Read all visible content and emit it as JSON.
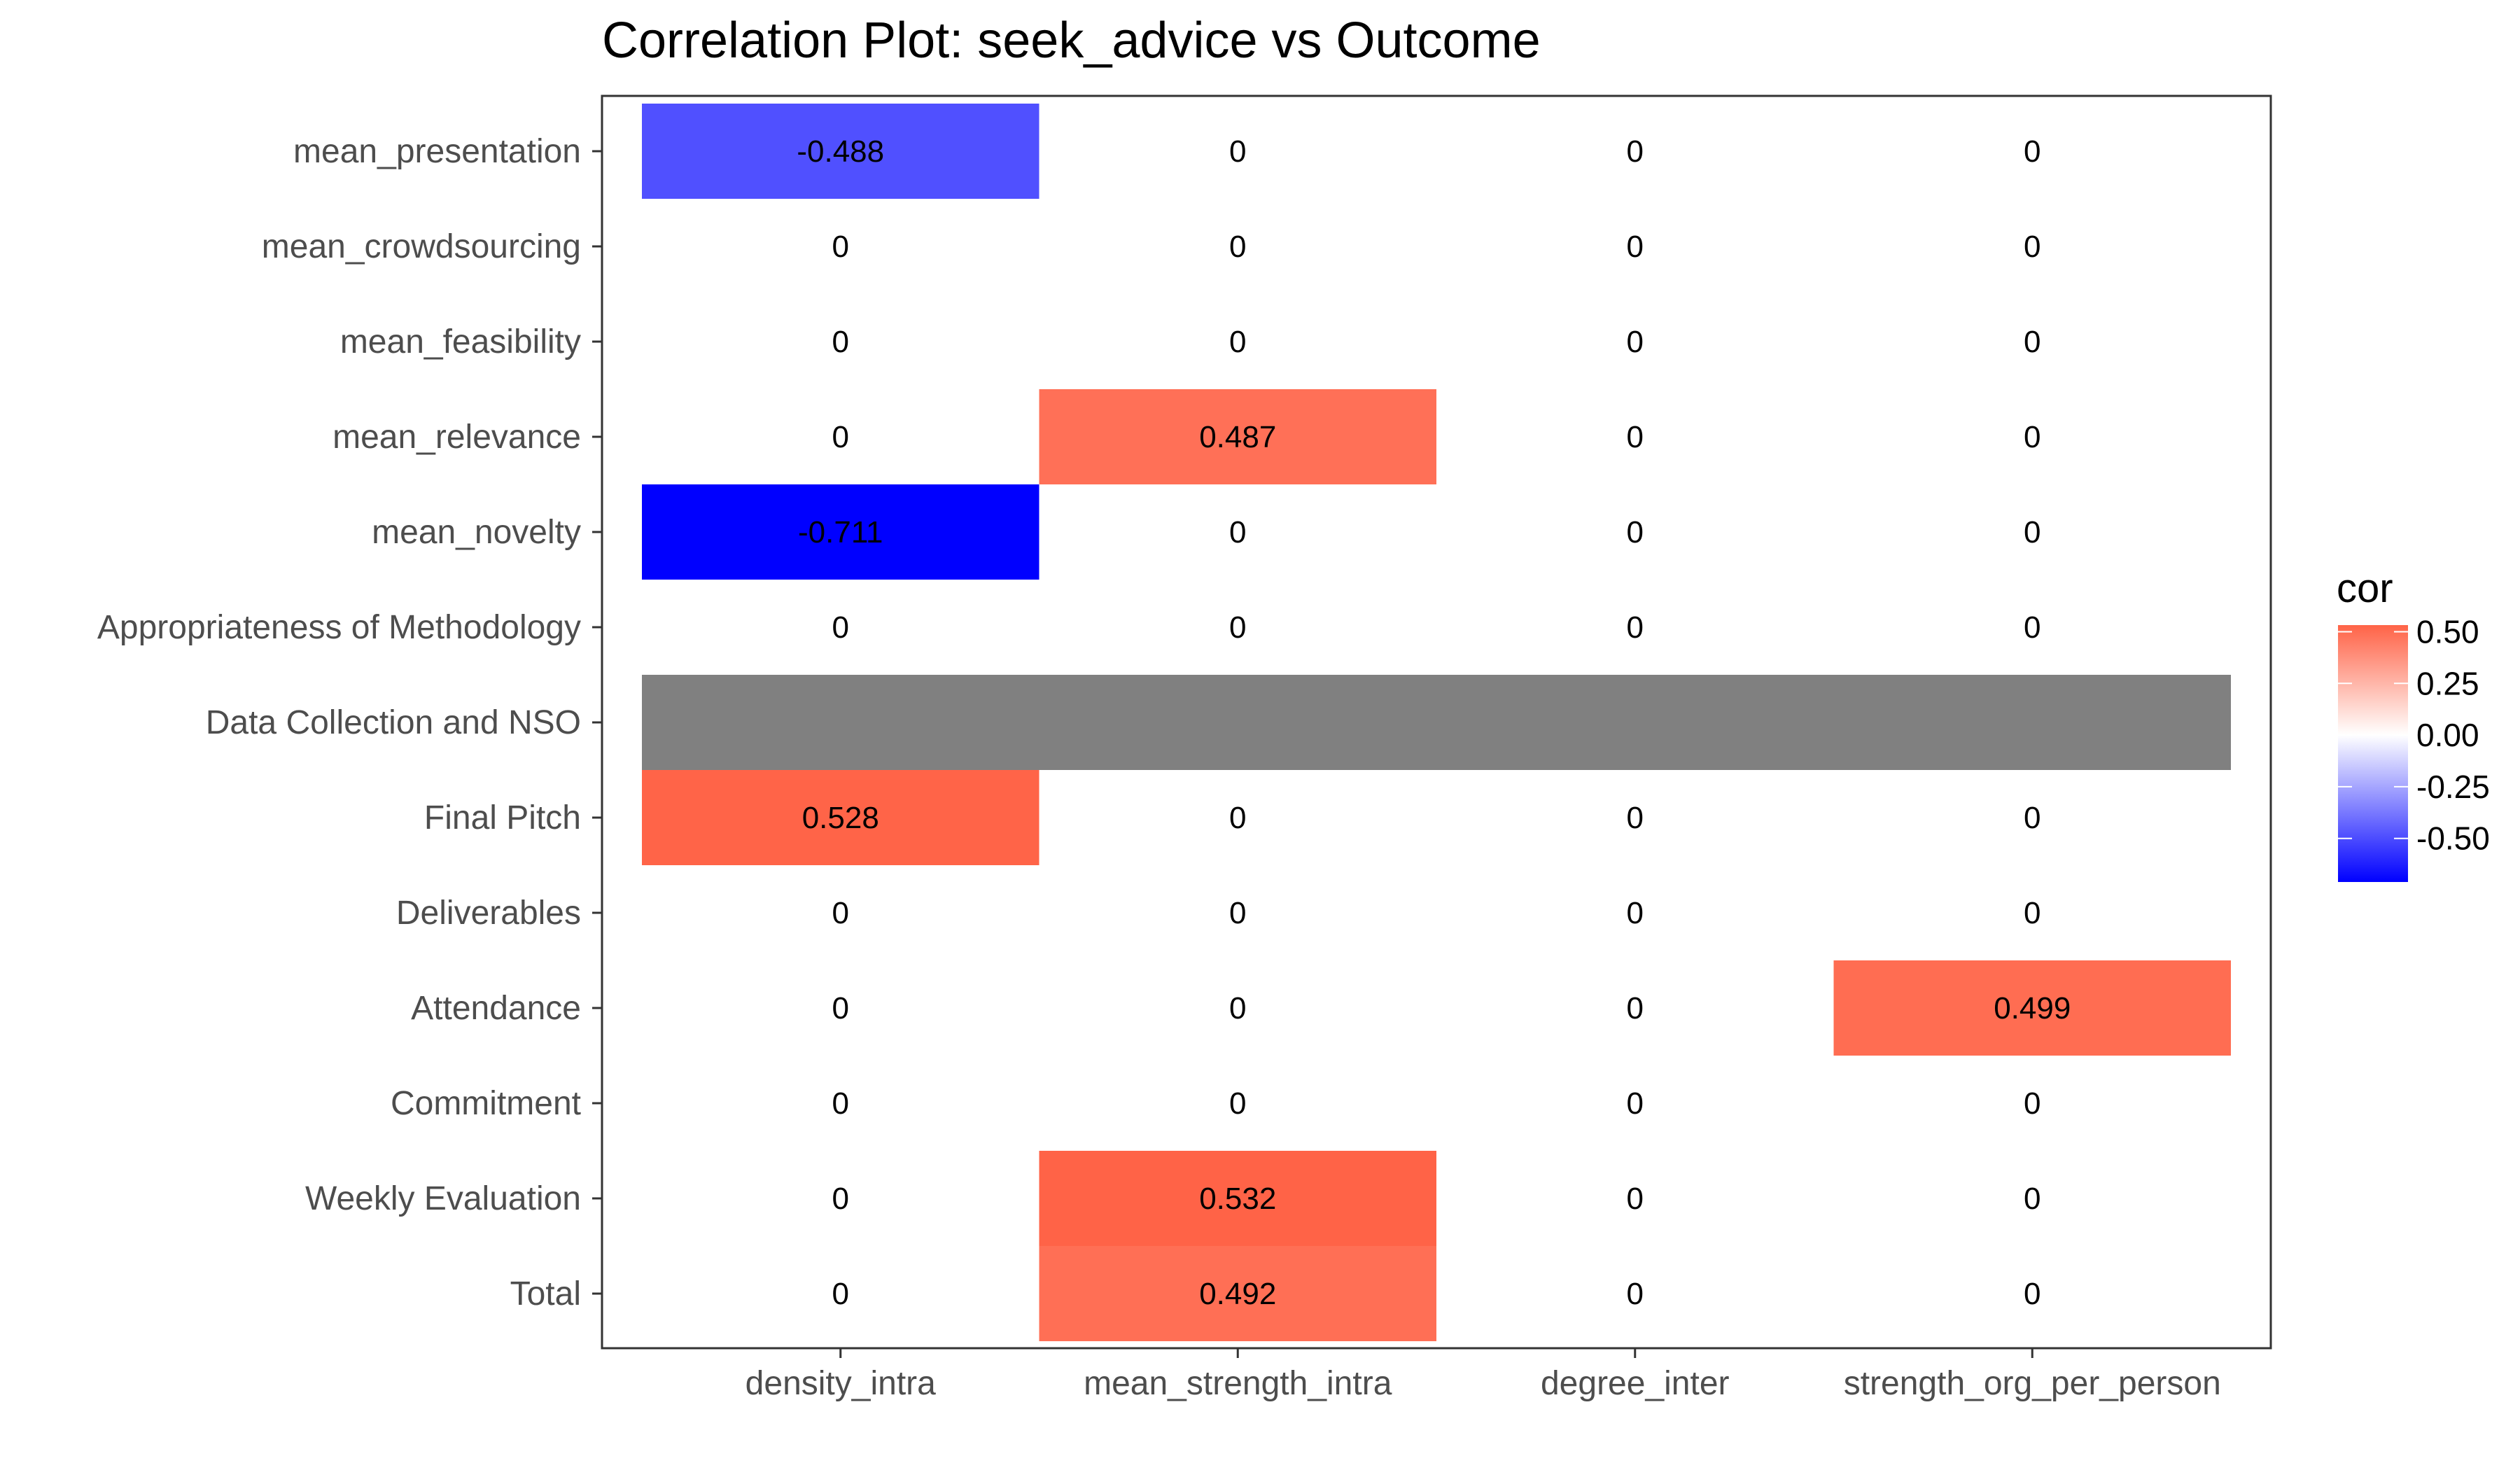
{
  "chart_data": {
    "type": "heatmap",
    "title": "Correlation Plot: seek_advice vs Outcome",
    "xlabel": "",
    "ylabel": "",
    "x_categories": [
      "density_intra",
      "mean_strength_intra",
      "degree_inter",
      "strength_org_per_person"
    ],
    "y_categories": [
      "mean_presentation",
      "mean_crowdsourcing",
      "mean_feasibility",
      "mean_relevance",
      "mean_novelty",
      "Appropriateness of Methodology",
      "Data Collection and NSO",
      "Final Pitch",
      "Deliverables",
      "Attendance",
      "Commitment",
      "Weekly Evaluation",
      "Total"
    ],
    "values": [
      [
        -0.488,
        0,
        0,
        0
      ],
      [
        0,
        0,
        0,
        0
      ],
      [
        0,
        0,
        0,
        0
      ],
      [
        0,
        0.487,
        0,
        0
      ],
      [
        -0.711,
        0,
        0,
        0
      ],
      [
        0,
        0,
        0,
        0
      ],
      [
        null,
        null,
        null,
        null
      ],
      [
        0.528,
        0,
        0,
        0
      ],
      [
        0,
        0,
        0,
        0
      ],
      [
        0,
        0,
        0,
        0.499
      ],
      [
        0,
        0,
        0,
        0
      ],
      [
        0,
        0.532,
        0,
        0
      ],
      [
        0,
        0.492,
        0,
        0
      ]
    ],
    "legend": {
      "title": "cor",
      "ticks": [
        0.5,
        0.25,
        0,
        -0.25,
        -0.5
      ],
      "tick_labels": [
        "0.50",
        "0.25",
        "0.00",
        "-0.25",
        "-0.50"
      ],
      "limits": [
        -0.711,
        0.532
      ],
      "placement": "right"
    },
    "colors": {
      "low": "#0000ff",
      "mid": "#ffffff",
      "high": "#ff6347",
      "na": "#808080"
    },
    "grid": false
  }
}
